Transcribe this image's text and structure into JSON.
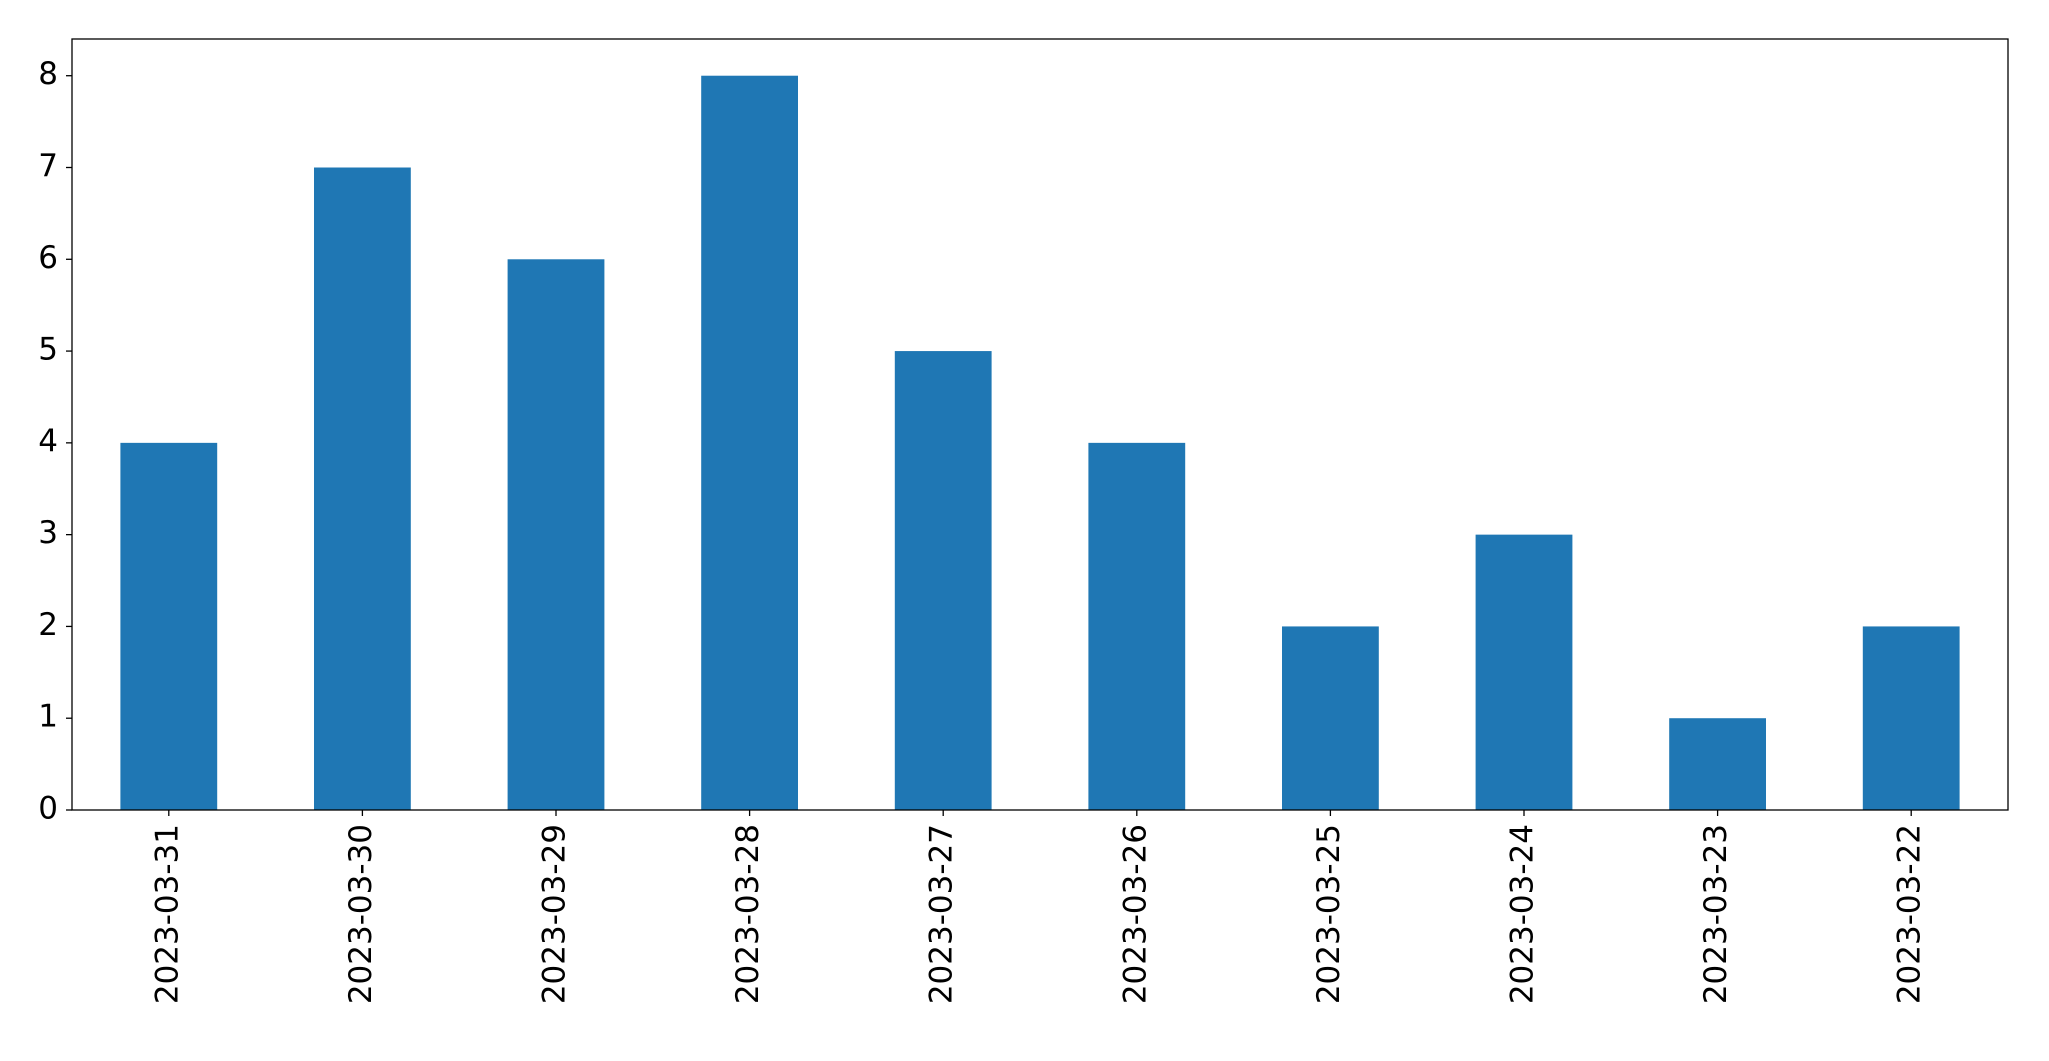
{
  "chart_data": {
    "type": "bar",
    "categories": [
      "2023-03-31",
      "2023-03-30",
      "2023-03-29",
      "2023-03-28",
      "2023-03-27",
      "2023-03-26",
      "2023-03-25",
      "2023-03-24",
      "2023-03-23",
      "2023-03-22"
    ],
    "values": [
      4,
      7,
      6,
      8,
      5,
      4,
      2,
      3,
      1,
      2
    ],
    "color": "#1f77b4",
    "ylim": [
      0,
      8.4
    ],
    "yticks": [
      0,
      1,
      2,
      3,
      4,
      5,
      6,
      7,
      8
    ],
    "grid": false
  }
}
